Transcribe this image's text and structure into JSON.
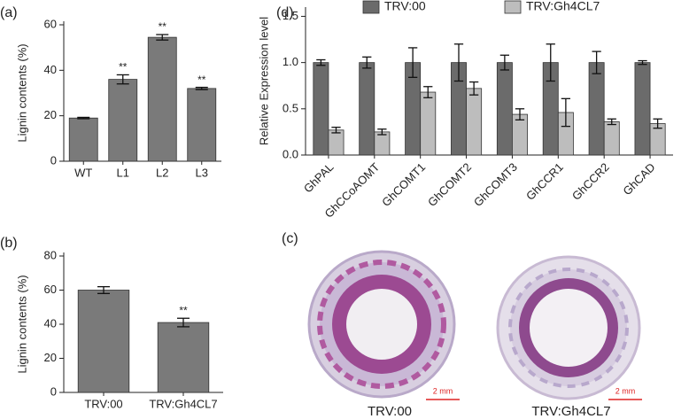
{
  "chart_data": [
    {
      "type": "bar",
      "panel": "(a)",
      "y_label": "Lignin contents (%)",
      "categories": [
        "WT",
        "L1",
        "L2",
        "L3"
      ],
      "series": [
        {
          "color": "#7a7a7a",
          "values": [
            19,
            36,
            54.5,
            32
          ],
          "errors": [
            0.3,
            2,
            1.2,
            0.5
          ]
        }
      ],
      "significance": [
        null,
        "**",
        "**",
        "**"
      ],
      "ylim": [
        0,
        60
      ],
      "yticks": [
        0,
        20,
        40,
        60
      ]
    },
    {
      "type": "bar",
      "panel": "(b)",
      "y_label": "Lignin contents (%)",
      "categories": [
        "TRV:00",
        "TRV:Gh4CL7"
      ],
      "series": [
        {
          "color": "#7a7a7a",
          "values": [
            60,
            41
          ],
          "errors": [
            2,
            2.5
          ]
        }
      ],
      "significance": [
        null,
        "**"
      ],
      "ylim": [
        0,
        80
      ],
      "yticks": [
        0,
        20,
        40,
        60,
        80
      ]
    },
    {
      "type": "bar",
      "panel": "(d)",
      "y_label": "Relative Expression level",
      "legend": "top",
      "categories": [
        "GhPAL",
        "GhCCoAOMT",
        "GhCOMT1",
        "GhCOMT2",
        "GhCOMT3",
        "GhCCR1",
        "GhCCR2",
        "GhCAD"
      ],
      "series": [
        {
          "name": "TRV:00",
          "color": "#6b6b6b",
          "values": [
            1.0,
            1.0,
            1.0,
            1.0,
            1.0,
            1.0,
            1.0,
            1.0
          ],
          "errors": [
            0.03,
            0.06,
            0.16,
            0.2,
            0.08,
            0.2,
            0.12,
            0.02
          ]
        },
        {
          "name": "TRV:Gh4CL7",
          "color": "#bdbdbd",
          "values": [
            0.27,
            0.25,
            0.68,
            0.72,
            0.44,
            0.46,
            0.36,
            0.34
          ],
          "errors": [
            0.03,
            0.03,
            0.06,
            0.07,
            0.06,
            0.15,
            0.03,
            0.05
          ]
        }
      ],
      "ylim": [
        0,
        1.6
      ],
      "yticks": [
        {
          "value": 0,
          "label": "0.0"
        },
        {
          "value": 0.5,
          "label": "0.5"
        },
        {
          "value": 1,
          "label": "1.0"
        },
        {
          "value": 1.5,
          "label": "1.5"
        }
      ]
    }
  ],
  "panel_c": {
    "label": "(c)",
    "images": [
      {
        "caption": "TRV:00",
        "scale": "2 mm"
      },
      {
        "caption": "TRV:Gh4CL7",
        "scale": "2 mm"
      }
    ]
  }
}
